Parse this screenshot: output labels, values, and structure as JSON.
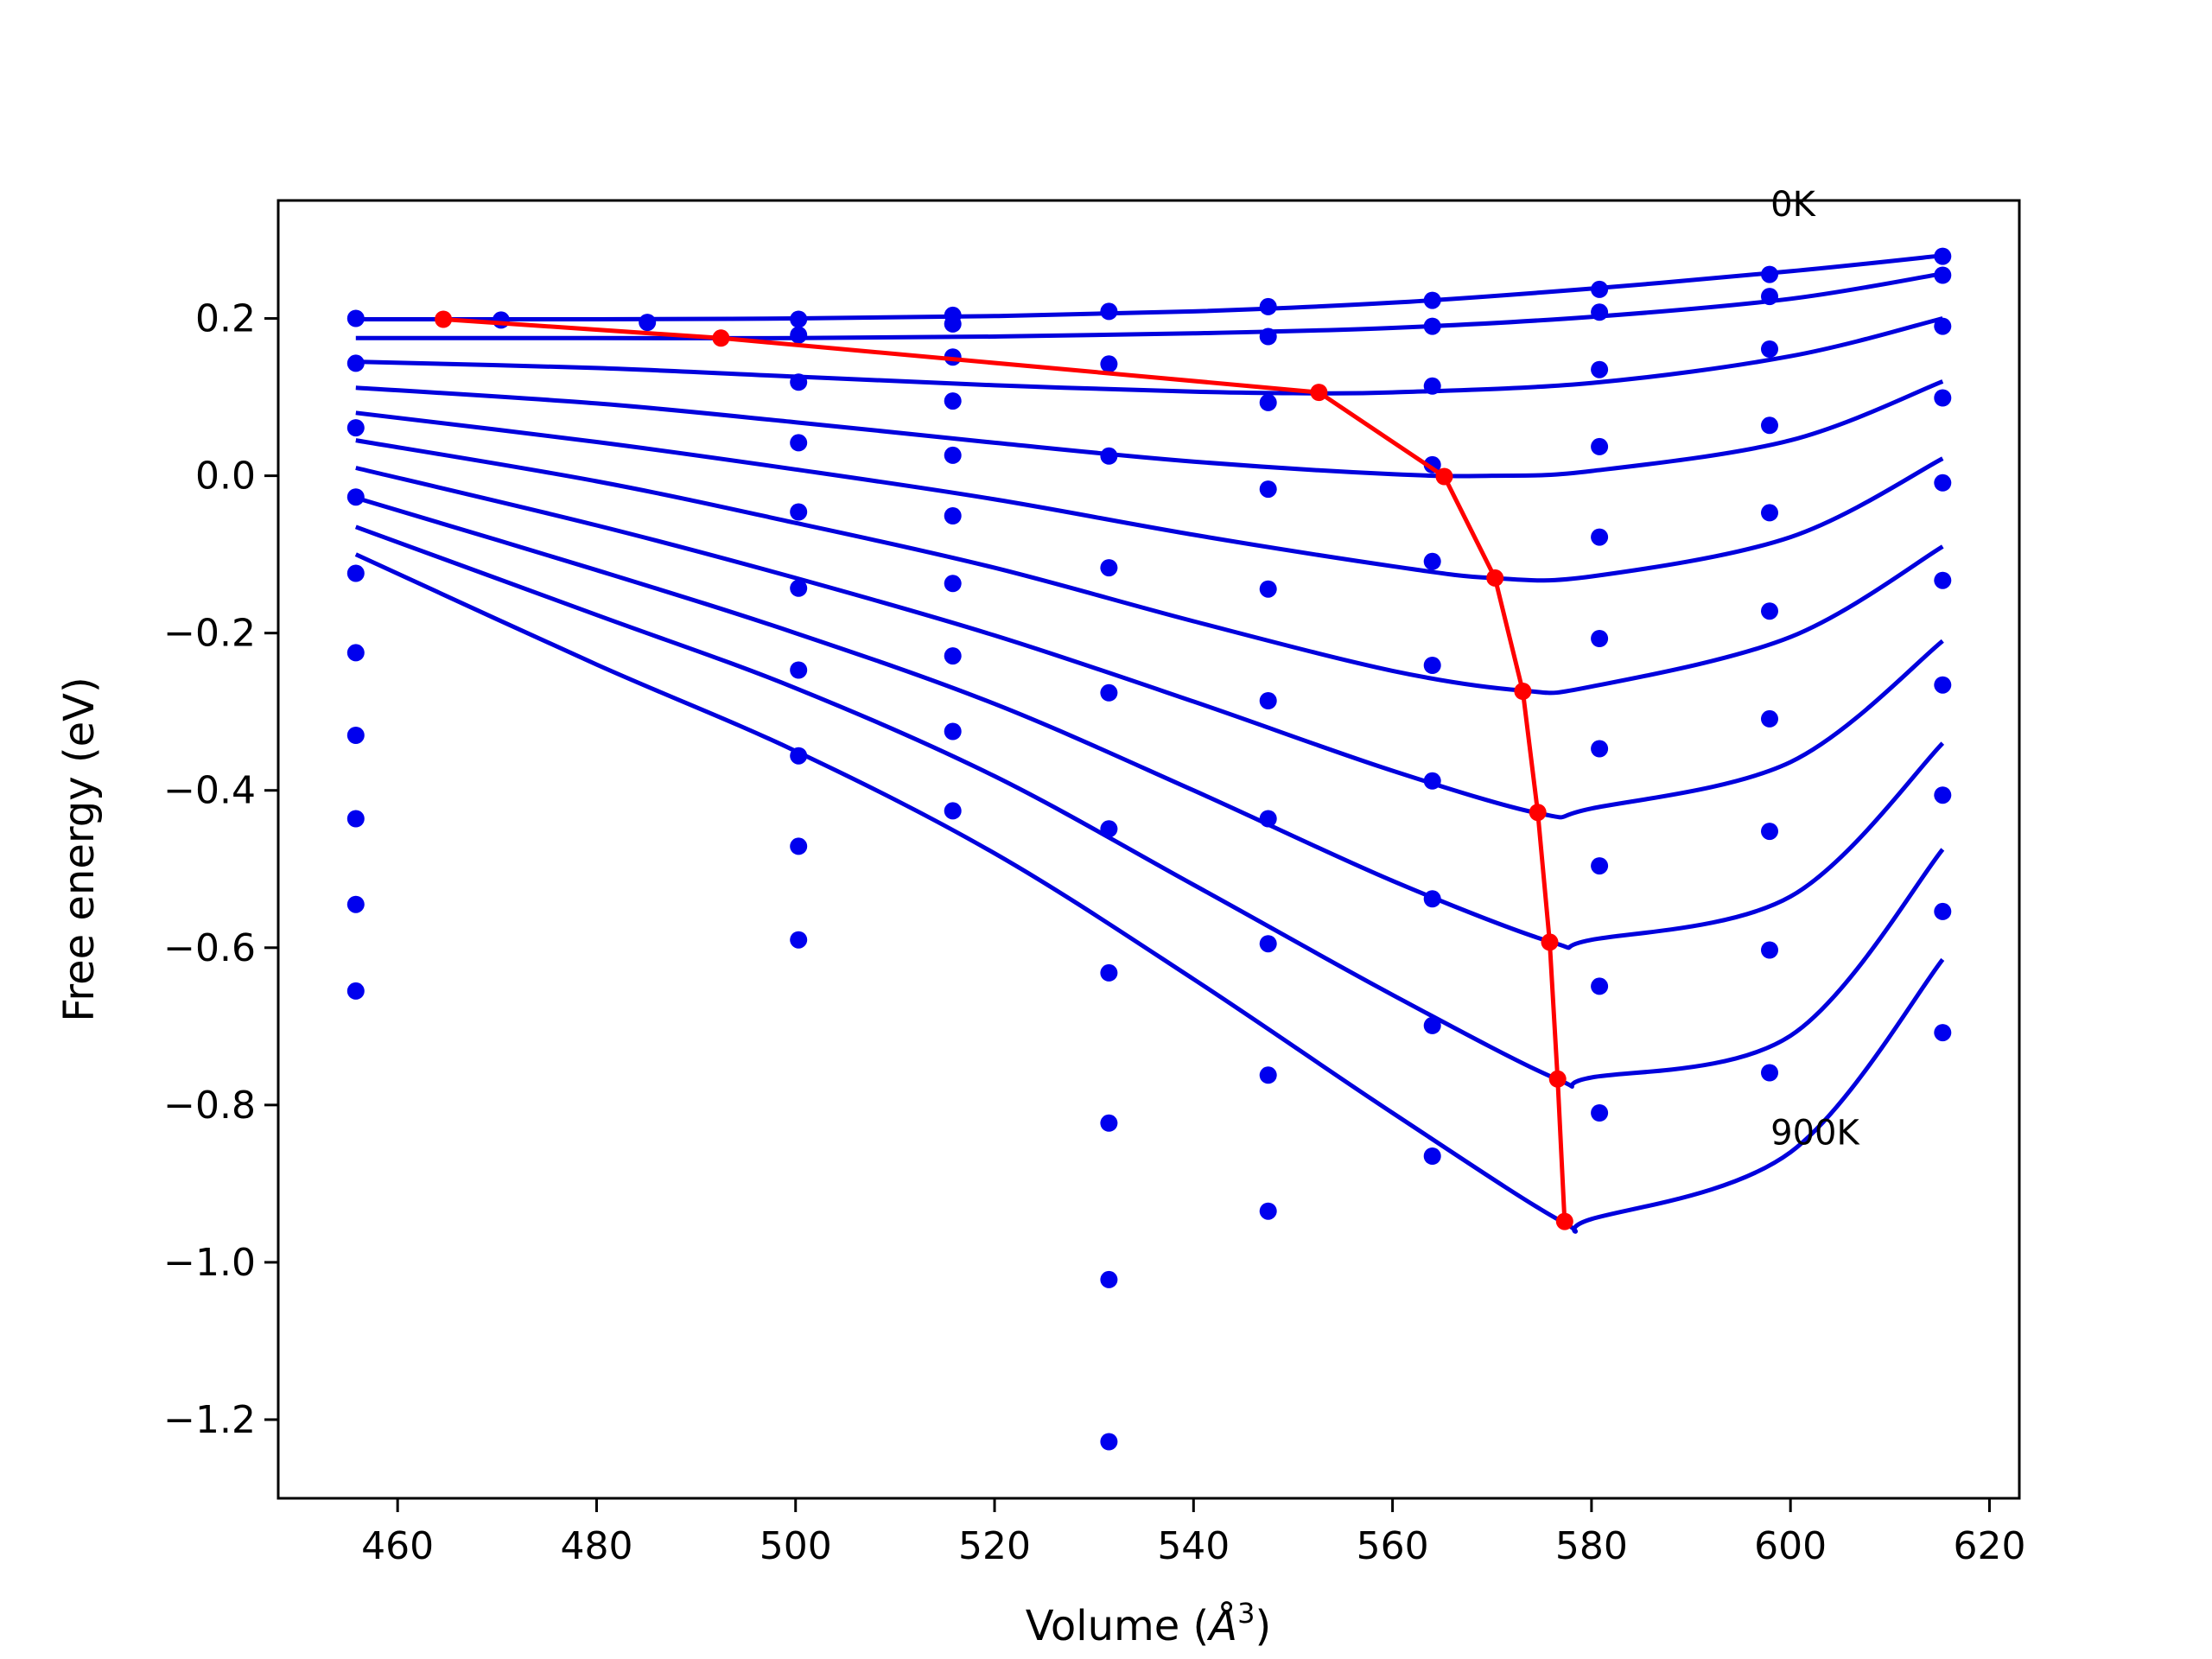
{
  "chart_data": {
    "type": "line",
    "title": "",
    "xlabel": "Volume (Å³)",
    "xlabel_parts": {
      "text": "Volume (",
      "symbol": "Å",
      "exponent": "3",
      "close": ")"
    },
    "ylabel": "Free energy (eV)",
    "xlim": [
      448,
      623
    ],
    "ylim": [
      -1.3,
      0.35
    ],
    "xticks": [
      460,
      480,
      500,
      520,
      540,
      560,
      580,
      600,
      620
    ],
    "yticks": [
      0.2,
      0.0,
      -0.2,
      -0.4,
      -0.6,
      -0.8,
      -1.0,
      -1.2
    ],
    "ytick_labels": [
      "0.2",
      "0.0",
      "−0.2",
      "−0.4",
      "−0.6",
      "−0.8",
      "−1.0",
      "−1.2"
    ],
    "grid": false,
    "legend": "none",
    "annotations": [
      {
        "text": "0K",
        "x": 598,
        "y": 0.33
      },
      {
        "text": "900K",
        "x": 598,
        "y": -0.85
      }
    ],
    "colors": {
      "curves": "#0000dd",
      "points": "#0000ee",
      "minima": "#ff0000"
    },
    "volumes": [
      455.8,
      470.4,
      485.1,
      500.3,
      515.8,
      531.5,
      547.5,
      564.0,
      580.8,
      597.9,
      615.3
    ],
    "points_by_volume": [
      {
        "x": 455.8,
        "y": [
          0.2,
          0.143,
          0.061,
          -0.027,
          -0.124,
          -0.225,
          -0.33,
          -0.436,
          -0.545,
          -0.655
        ]
      },
      {
        "x": 470.4,
        "y": [
          0.198
        ]
      },
      {
        "x": 485.1,
        "y": [
          0.195
        ]
      },
      {
        "x": 500.3,
        "y": [
          0.199,
          0.179,
          0.119,
          0.042,
          -0.046,
          -0.143,
          -0.247,
          -0.356,
          -0.471,
          -0.59
        ]
      },
      {
        "x": 515.8,
        "y": [
          0.204,
          0.193,
          0.151,
          0.095,
          0.026,
          -0.051,
          -0.137,
          -0.229,
          -0.325,
          -0.426
        ]
      },
      {
        "x": 531.5,
        "y": [
          0.209,
          0.142,
          0.025,
          -0.117,
          -0.276,
          -0.449,
          -0.632,
          -0.823,
          -1.022,
          -1.228
        ]
      },
      {
        "x": 547.5,
        "y": [
          0.215,
          0.177,
          0.093,
          -0.017,
          -0.144,
          -0.286,
          -0.436,
          -0.595,
          -0.762,
          -0.935
        ]
      },
      {
        "x": 564.0,
        "y": [
          0.223,
          0.19,
          0.114,
          0.014,
          -0.109,
          -0.241,
          -0.388,
          -0.538,
          -0.699,
          -0.865
        ]
      },
      {
        "x": 580.8,
        "y": [
          0.237,
          0.208,
          0.135,
          0.037,
          -0.078,
          -0.207,
          -0.347,
          -0.496,
          -0.649,
          -0.81
        ]
      },
      {
        "x": 597.9,
        "y": [
          0.256,
          0.228,
          0.161,
          0.064,
          -0.047,
          -0.172,
          -0.309,
          -0.452,
          -0.603,
          -0.759
        ]
      },
      {
        "x": 615.3,
        "y": [
          0.279,
          0.255,
          0.19,
          0.099,
          -0.009,
          -0.133,
          -0.266,
          -0.406,
          -0.554,
          -0.708
        ]
      }
    ],
    "fit_curves": [
      {
        "x": [
          455.8,
          480,
          500,
          520,
          540,
          560,
          580,
          600,
          615.3
        ],
        "y": [
          0.199,
          0.199,
          0.2,
          0.203,
          0.209,
          0.22,
          0.238,
          0.26,
          0.28
        ]
      },
      {
        "x": [
          455.8,
          480,
          500,
          520,
          540,
          560,
          580,
          600,
          615.3
        ],
        "y": [
          0.175,
          0.175,
          0.175,
          0.177,
          0.181,
          0.188,
          0.202,
          0.225,
          0.257
        ]
      },
      {
        "x": [
          455.8,
          480,
          500,
          520,
          540,
          550,
          560,
          580,
          600,
          615.3
        ],
        "y": [
          0.145,
          0.137,
          0.126,
          0.115,
          0.107,
          0.105,
          0.106,
          0.118,
          0.152,
          0.2
        ]
      },
      {
        "x": [
          455.8,
          480,
          500,
          520,
          540,
          560,
          570,
          580,
          600,
          615.3
        ],
        "y": [
          0.112,
          0.092,
          0.068,
          0.042,
          0.018,
          0.002,
          0.0,
          0.006,
          0.045,
          0.12
        ]
      },
      {
        "x": [
          455.8,
          480,
          500,
          520,
          540,
          560,
          570,
          580,
          600,
          615.3
        ],
        "y": [
          0.08,
          0.043,
          0.008,
          -0.03,
          -0.075,
          -0.115,
          -0.13,
          -0.128,
          -0.078,
          0.022
        ]
      },
      {
        "x": [
          455.8,
          480,
          500,
          520,
          540,
          560,
          573,
          580,
          600,
          615.3
        ],
        "y": [
          0.045,
          -0.007,
          -0.06,
          -0.117,
          -0.185,
          -0.248,
          -0.273,
          -0.268,
          -0.205,
          -0.09
        ]
      },
      {
        "x": [
          455.8,
          480,
          500,
          520,
          540,
          560,
          575,
          580,
          600,
          615.3
        ],
        "y": [
          0.01,
          -0.063,
          -0.13,
          -0.203,
          -0.287,
          -0.375,
          -0.43,
          -0.423,
          -0.364,
          -0.21
        ]
      },
      {
        "x": [
          455.8,
          480,
          500,
          520,
          540,
          560,
          576,
          580,
          600,
          615.3
        ],
        "y": [
          -0.028,
          -0.12,
          -0.2,
          -0.29,
          -0.4,
          -0.515,
          -0.593,
          -0.59,
          -0.535,
          -0.34
        ]
      },
      {
        "x": [
          455.8,
          480,
          500,
          520,
          540,
          560,
          576.5,
          580,
          600,
          615.3
        ],
        "y": [
          -0.065,
          -0.177,
          -0.27,
          -0.382,
          -0.52,
          -0.66,
          -0.767,
          -0.765,
          -0.712,
          -0.475
        ]
      },
      {
        "x": [
          455.8,
          480,
          500,
          520,
          540,
          560,
          577,
          580,
          600,
          615.3
        ],
        "y": [
          -0.1,
          -0.24,
          -0.35,
          -0.48,
          -0.64,
          -0.81,
          -0.948,
          -0.945,
          -0.86,
          -0.615
        ]
      }
    ],
    "minima": {
      "x": [
        464.6,
        492.5,
        552.6,
        565.2,
        570.3,
        573.1,
        574.6,
        575.8,
        576.6,
        577.3
      ],
      "y": [
        0.199,
        0.175,
        0.106,
        -0.001,
        -0.13,
        -0.274,
        -0.428,
        -0.593,
        -0.767,
        -0.948
      ]
    }
  }
}
